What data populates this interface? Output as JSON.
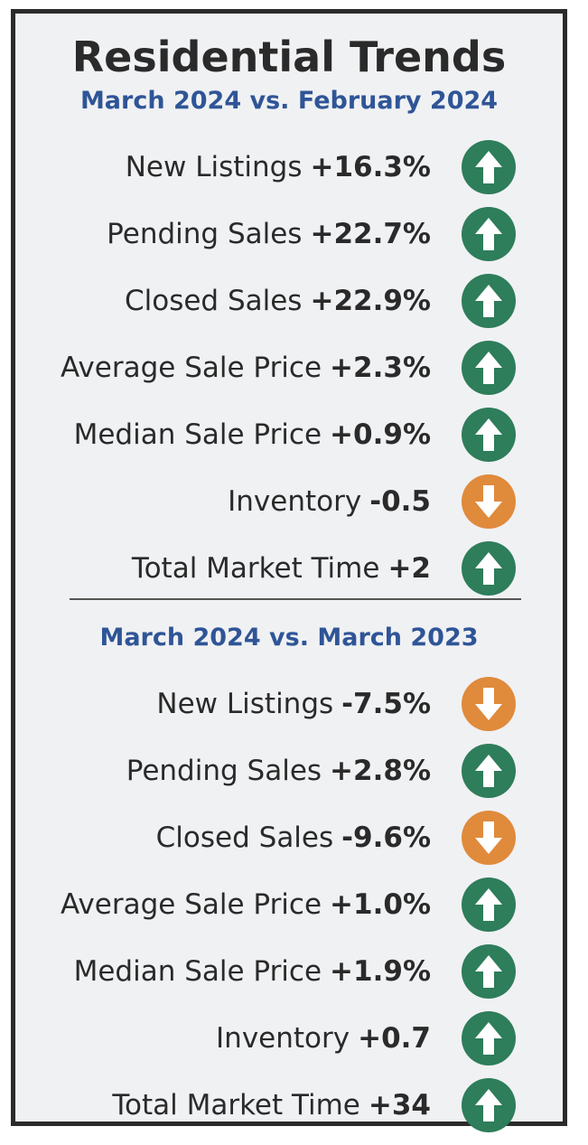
{
  "title": "Residential Trends",
  "colors": {
    "title": "#2a2a2a",
    "subtitle": "#2f5597",
    "up": "#2e7d5b",
    "down": "#e08a3c",
    "panel_bg": "#f0f1f3",
    "border": "#2b2b2b"
  },
  "sections": [
    {
      "heading": "March 2024 vs. February 2024",
      "rows": [
        {
          "label": "New Listings",
          "value": "+16.3%",
          "direction": "up",
          "icon": "arrow-up-icon"
        },
        {
          "label": "Pending Sales",
          "value": "+22.7%",
          "direction": "up",
          "icon": "arrow-up-icon"
        },
        {
          "label": "Closed Sales",
          "value": "+22.9%",
          "direction": "up",
          "icon": "arrow-up-icon"
        },
        {
          "label": "Average Sale Price",
          "value": "+2.3%",
          "direction": "up",
          "icon": "arrow-up-icon"
        },
        {
          "label": "Median Sale Price",
          "value": "+0.9%",
          "direction": "up",
          "icon": "arrow-up-icon"
        },
        {
          "label": "Inventory",
          "value": "-0.5",
          "direction": "down",
          "icon": "arrow-down-icon"
        },
        {
          "label": "Total Market Time",
          "value": "+2",
          "direction": "up",
          "icon": "arrow-up-icon"
        }
      ]
    },
    {
      "heading": "March 2024 vs. March 2023",
      "rows": [
        {
          "label": "New Listings",
          "value": "-7.5%",
          "direction": "down",
          "icon": "arrow-down-icon"
        },
        {
          "label": "Pending Sales",
          "value": "+2.8%",
          "direction": "up",
          "icon": "arrow-up-icon"
        },
        {
          "label": "Closed Sales",
          "value": "-9.6%",
          "direction": "down",
          "icon": "arrow-down-icon"
        },
        {
          "label": "Average Sale Price",
          "value": "+1.0%",
          "direction": "up",
          "icon": "arrow-up-icon"
        },
        {
          "label": "Median Sale Price",
          "value": "+1.9%",
          "direction": "up",
          "icon": "arrow-up-icon"
        },
        {
          "label": "Inventory",
          "value": "+0.7",
          "direction": "up",
          "icon": "arrow-up-icon"
        },
        {
          "label": "Total Market Time",
          "value": "+34",
          "direction": "up",
          "icon": "arrow-up-icon"
        }
      ]
    }
  ]
}
